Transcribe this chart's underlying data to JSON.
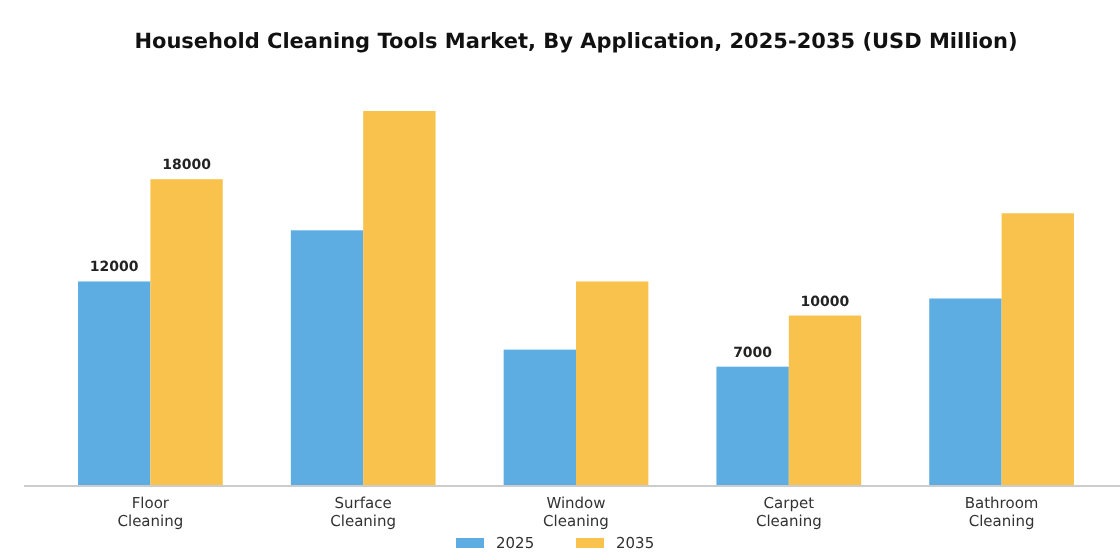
{
  "chart_data": {
    "type": "bar",
    "title": "Household Cleaning Tools Market, By Application, 2025-2035 (USD Million)",
    "categories": [
      "Floor\nCleaning",
      "Surface\nCleaning",
      "Window\nCleaning",
      "Carpet\nCleaning",
      "Bathroom\nCleaning"
    ],
    "series": [
      {
        "name": "2025",
        "color": "#5dade2",
        "values": [
          12000,
          15000,
          8000,
          7000,
          11000
        ],
        "value_labels": [
          "12000",
          null,
          null,
          "7000",
          null
        ]
      },
      {
        "name": "2035",
        "color": "#f8c24c",
        "values": [
          18000,
          22000,
          12000,
          10000,
          16000
        ],
        "value_labels": [
          "18000",
          null,
          null,
          "10000",
          null
        ]
      }
    ],
    "legend": "bottom",
    "grid": false
  }
}
